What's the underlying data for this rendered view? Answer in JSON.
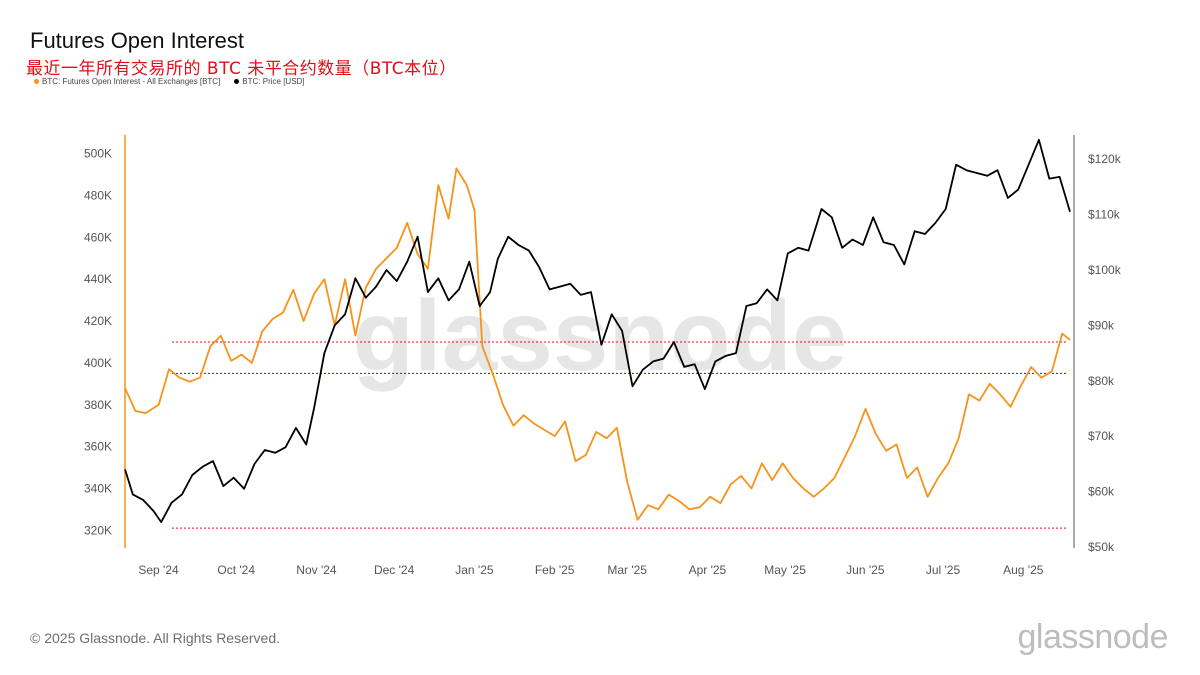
{
  "header": {
    "title": "Futures Open Interest",
    "subtitle": "最近一年所有交易所的 BTC 未平合约数量（BTC本位）"
  },
  "legend": [
    {
      "label": "BTC: Futures Open Interest - All Exchanges [BTC]",
      "color": "#f7931a"
    },
    {
      "label": "BTC: Price [USD]",
      "color": "#000000"
    }
  ],
  "footer": {
    "copyright": "© 2025 Glassnode. All Rights Reserved.",
    "brand": "glassnode"
  },
  "watermark": "glassnode",
  "chart_data": {
    "type": "line",
    "x_ticks": [
      "Sep '24",
      "Oct '24",
      "Nov '24",
      "Dec '24",
      "Jan '25",
      "Feb '25",
      "Mar '25",
      "Apr '25",
      "May '25",
      "Jun '25",
      "Jul '25",
      "Aug '25"
    ],
    "y_left_ticks": [
      "320K",
      "340K",
      "360K",
      "380K",
      "400K",
      "420K",
      "440K",
      "460K",
      "480K",
      "500K"
    ],
    "y_left_range": [
      312000,
      508000
    ],
    "y_right_ticks": [
      "$50k",
      "$60k",
      "$70k",
      "$80k",
      "$90k",
      "$100k",
      "$110k",
      "$120k"
    ],
    "y_right_range": [
      50000,
      124000
    ],
    "x_range": [
      "2024-08-26",
      "2025-08-26"
    ],
    "reference_lines": [
      {
        "axis": "left",
        "value": 410000,
        "color": "#e0101a",
        "style": "dotted"
      },
      {
        "axis": "left",
        "value": 395000,
        "color": "#2020c8",
        "style": "dotted"
      },
      {
        "axis": "left",
        "value": 321000,
        "color": "#e0101a",
        "style": "dotted"
      }
    ],
    "series": [
      {
        "name": "BTC: Futures Open Interest - All Exchanges [BTC]",
        "axis": "left",
        "color": "#f7931a",
        "points": [
          [
            "2024-08-26",
            388000
          ],
          [
            "2024-08-30",
            377000
          ],
          [
            "2024-09-03",
            376000
          ],
          [
            "2024-09-08",
            380000
          ],
          [
            "2024-09-12",
            397000
          ],
          [
            "2024-09-16",
            393000
          ],
          [
            "2024-09-20",
            391000
          ],
          [
            "2024-09-24",
            393000
          ],
          [
            "2024-09-28",
            408000
          ],
          [
            "2024-10-02",
            413000
          ],
          [
            "2024-10-06",
            401000
          ],
          [
            "2024-10-10",
            404000
          ],
          [
            "2024-10-14",
            400000
          ],
          [
            "2024-10-18",
            415000
          ],
          [
            "2024-10-22",
            421000
          ],
          [
            "2024-10-26",
            424000
          ],
          [
            "2024-10-30",
            435000
          ],
          [
            "2024-11-03",
            420000
          ],
          [
            "2024-11-07",
            433000
          ],
          [
            "2024-11-11",
            440000
          ],
          [
            "2024-11-15",
            418000
          ],
          [
            "2024-11-19",
            440000
          ],
          [
            "2024-11-23",
            413000
          ],
          [
            "2024-11-27",
            436000
          ],
          [
            "2024-12-01",
            445000
          ],
          [
            "2024-12-05",
            450000
          ],
          [
            "2024-12-09",
            455000
          ],
          [
            "2024-12-13",
            467000
          ],
          [
            "2024-12-17",
            452000
          ],
          [
            "2024-12-21",
            445000
          ],
          [
            "2024-12-25",
            485000
          ],
          [
            "2024-12-29",
            469000
          ],
          [
            "2025-01-01",
            493000
          ],
          [
            "2025-01-05",
            485000
          ],
          [
            "2025-01-08",
            473000
          ],
          [
            "2025-01-11",
            408000
          ],
          [
            "2025-01-15",
            395000
          ],
          [
            "2025-01-19",
            380000
          ],
          [
            "2025-01-23",
            370000
          ],
          [
            "2025-01-27",
            375000
          ],
          [
            "2025-01-31",
            371000
          ],
          [
            "2025-02-04",
            368000
          ],
          [
            "2025-02-08",
            365000
          ],
          [
            "2025-02-12",
            372000
          ],
          [
            "2025-02-16",
            353000
          ],
          [
            "2025-02-20",
            356000
          ],
          [
            "2025-02-24",
            367000
          ],
          [
            "2025-02-28",
            364000
          ],
          [
            "2025-03-04",
            369000
          ],
          [
            "2025-03-08",
            343000
          ],
          [
            "2025-03-12",
            325000
          ],
          [
            "2025-03-16",
            332000
          ],
          [
            "2025-03-20",
            330000
          ],
          [
            "2025-03-24",
            337000
          ],
          [
            "2025-03-28",
            334000
          ],
          [
            "2025-04-01",
            330000
          ],
          [
            "2025-04-05",
            331000
          ],
          [
            "2025-04-09",
            336000
          ],
          [
            "2025-04-13",
            333000
          ],
          [
            "2025-04-17",
            342000
          ],
          [
            "2025-04-21",
            346000
          ],
          [
            "2025-04-25",
            340000
          ],
          [
            "2025-04-29",
            352000
          ],
          [
            "2025-05-03",
            344000
          ],
          [
            "2025-05-07",
            352000
          ],
          [
            "2025-05-11",
            345000
          ],
          [
            "2025-05-15",
            340000
          ],
          [
            "2025-05-19",
            336000
          ],
          [
            "2025-05-23",
            340000
          ],
          [
            "2025-05-27",
            345000
          ],
          [
            "2025-05-31",
            355000
          ],
          [
            "2025-06-04",
            365000
          ],
          [
            "2025-06-08",
            378000
          ],
          [
            "2025-06-12",
            366000
          ],
          [
            "2025-06-16",
            358000
          ],
          [
            "2025-06-20",
            361000
          ],
          [
            "2025-06-24",
            345000
          ],
          [
            "2025-06-28",
            350000
          ],
          [
            "2025-07-02",
            336000
          ],
          [
            "2025-07-06",
            345000
          ],
          [
            "2025-07-10",
            352000
          ],
          [
            "2025-07-14",
            364000
          ],
          [
            "2025-07-18",
            385000
          ],
          [
            "2025-07-22",
            382000
          ],
          [
            "2025-07-26",
            390000
          ],
          [
            "2025-07-30",
            385000
          ],
          [
            "2025-08-03",
            379000
          ],
          [
            "2025-08-07",
            389000
          ],
          [
            "2025-08-11",
            398000
          ],
          [
            "2025-08-15",
            393000
          ],
          [
            "2025-08-19",
            396000
          ],
          [
            "2025-08-23",
            414000
          ],
          [
            "2025-08-26",
            411000
          ]
        ]
      },
      {
        "name": "BTC: Price [USD]",
        "axis": "right",
        "color": "#000000",
        "points": [
          [
            "2024-08-26",
            64000
          ],
          [
            "2024-08-29",
            59500
          ],
          [
            "2024-09-02",
            58500
          ],
          [
            "2024-09-06",
            56500
          ],
          [
            "2024-09-09",
            54500
          ],
          [
            "2024-09-13",
            58000
          ],
          [
            "2024-09-17",
            59500
          ],
          [
            "2024-09-21",
            63000
          ],
          [
            "2024-09-25",
            64500
          ],
          [
            "2024-09-29",
            65500
          ],
          [
            "2024-10-03",
            61000
          ],
          [
            "2024-10-07",
            62500
          ],
          [
            "2024-10-11",
            60500
          ],
          [
            "2024-10-15",
            65000
          ],
          [
            "2024-10-19",
            67500
          ],
          [
            "2024-10-23",
            67000
          ],
          [
            "2024-10-27",
            68000
          ],
          [
            "2024-10-31",
            71500
          ],
          [
            "2024-11-04",
            68500
          ],
          [
            "2024-11-07",
            75000
          ],
          [
            "2024-11-11",
            85000
          ],
          [
            "2024-11-15",
            90000
          ],
          [
            "2024-11-19",
            92000
          ],
          [
            "2024-11-23",
            98500
          ],
          [
            "2024-11-27",
            95000
          ],
          [
            "2024-12-01",
            97000
          ],
          [
            "2024-12-05",
            100000
          ],
          [
            "2024-12-09",
            98000
          ],
          [
            "2024-12-13",
            101500
          ],
          [
            "2024-12-17",
            106000
          ],
          [
            "2024-12-21",
            96000
          ],
          [
            "2024-12-25",
            98500
          ],
          [
            "2024-12-29",
            94500
          ],
          [
            "2025-01-02",
            96500
          ],
          [
            "2025-01-06",
            101500
          ],
          [
            "2025-01-10",
            93500
          ],
          [
            "2025-01-14",
            96000
          ],
          [
            "2025-01-17",
            102000
          ],
          [
            "2025-01-21",
            106000
          ],
          [
            "2025-01-25",
            104500
          ],
          [
            "2025-01-29",
            103500
          ],
          [
            "2025-02-02",
            100500
          ],
          [
            "2025-02-06",
            96500
          ],
          [
            "2025-02-10",
            97000
          ],
          [
            "2025-02-14",
            97500
          ],
          [
            "2025-02-18",
            95500
          ],
          [
            "2025-02-22",
            96000
          ],
          [
            "2025-02-26",
            86500
          ],
          [
            "2025-03-02",
            92000
          ],
          [
            "2025-03-06",
            89000
          ],
          [
            "2025-03-10",
            79000
          ],
          [
            "2025-03-14",
            82000
          ],
          [
            "2025-03-18",
            83500
          ],
          [
            "2025-03-22",
            84000
          ],
          [
            "2025-03-26",
            87000
          ],
          [
            "2025-03-30",
            82500
          ],
          [
            "2025-04-03",
            83000
          ],
          [
            "2025-04-07",
            78500
          ],
          [
            "2025-04-11",
            83500
          ],
          [
            "2025-04-15",
            84500
          ],
          [
            "2025-04-19",
            85000
          ],
          [
            "2025-04-23",
            93500
          ],
          [
            "2025-04-27",
            94000
          ],
          [
            "2025-05-01",
            96500
          ],
          [
            "2025-05-05",
            94500
          ],
          [
            "2025-05-09",
            103000
          ],
          [
            "2025-05-13",
            104000
          ],
          [
            "2025-05-17",
            103500
          ],
          [
            "2025-05-22",
            111000
          ],
          [
            "2025-05-26",
            109500
          ],
          [
            "2025-05-30",
            104000
          ],
          [
            "2025-06-03",
            105500
          ],
          [
            "2025-06-07",
            104500
          ],
          [
            "2025-06-11",
            109500
          ],
          [
            "2025-06-15",
            105000
          ],
          [
            "2025-06-19",
            104500
          ],
          [
            "2025-06-23",
            101000
          ],
          [
            "2025-06-27",
            107000
          ],
          [
            "2025-07-01",
            106500
          ],
          [
            "2025-07-05",
            108500
          ],
          [
            "2025-07-09",
            111000
          ],
          [
            "2025-07-13",
            119000
          ],
          [
            "2025-07-17",
            118000
          ],
          [
            "2025-07-21",
            117500
          ],
          [
            "2025-07-25",
            117000
          ],
          [
            "2025-07-29",
            118000
          ],
          [
            "2025-08-02",
            113000
          ],
          [
            "2025-08-06",
            114500
          ],
          [
            "2025-08-10",
            119000
          ],
          [
            "2025-08-14",
            123500
          ],
          [
            "2025-08-18",
            116500
          ],
          [
            "2025-08-22",
            116800
          ],
          [
            "2025-08-26",
            110500
          ]
        ]
      }
    ]
  }
}
